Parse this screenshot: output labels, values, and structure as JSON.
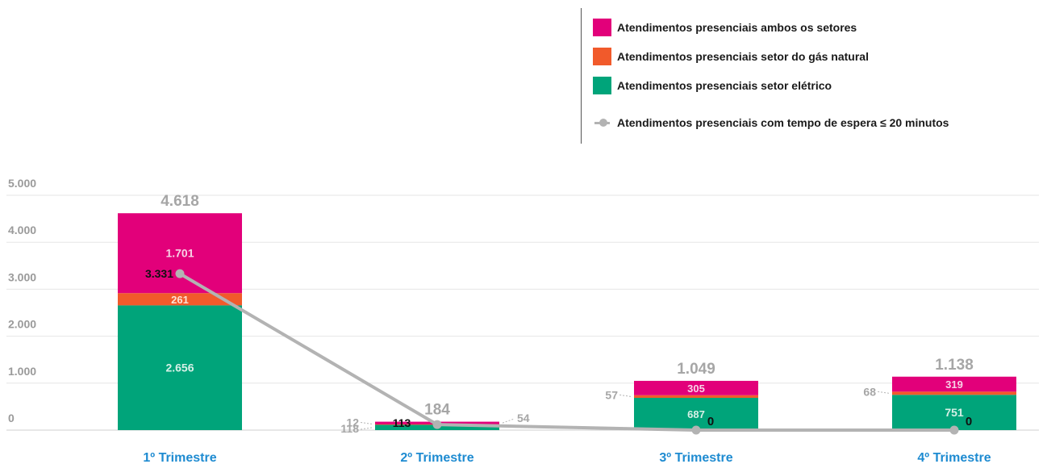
{
  "chart_data": {
    "type": "bar",
    "categories": [
      "1º Trimestre",
      "2º Trimestre",
      "3º Trimestre",
      "4º Trimestre"
    ],
    "series": [
      {
        "name": "Atendimentos presenciais setor elétrico",
        "values": [
          2656,
          113,
          687,
          751
        ],
        "color": "#00a47a",
        "labels": [
          "2.656",
          "113",
          "687",
          "751"
        ]
      },
      {
        "name": "Atendimentos presenciais setor do gás natural",
        "values": [
          261,
          12,
          57,
          68
        ],
        "color": "#f15a2b",
        "labels": [
          "261",
          "12",
          "57",
          "68"
        ]
      },
      {
        "name": "Atendimentos presenciais ambos os setores",
        "values": [
          1701,
          54,
          305,
          319
        ],
        "color": "#e2007a",
        "labels": [
          "1.701",
          "54",
          "305",
          "319"
        ]
      }
    ],
    "line": {
      "name": "Atendimentos presenciais com tempo de espera ≤ 20 minutos",
      "values": [
        3331,
        118,
        0,
        0
      ],
      "color": "#b3b3b3",
      "labels": [
        "3.331",
        "118",
        "0",
        "0"
      ]
    },
    "totals": [
      "4.618",
      "184",
      "1.049",
      "1.138"
    ],
    "ylim": [
      0,
      5000
    ],
    "yticks": [
      {
        "value": 0,
        "label": "0"
      },
      {
        "value": 1000,
        "label": "1.000"
      },
      {
        "value": 2000,
        "label": "2.000"
      },
      {
        "value": 3000,
        "label": "3.000"
      },
      {
        "value": 4000,
        "label": "4.000"
      },
      {
        "value": 5000,
        "label": "5.000"
      }
    ],
    "grid": true,
    "legend_position": "top-right",
    "legend_order": [
      2,
      1,
      0
    ]
  }
}
